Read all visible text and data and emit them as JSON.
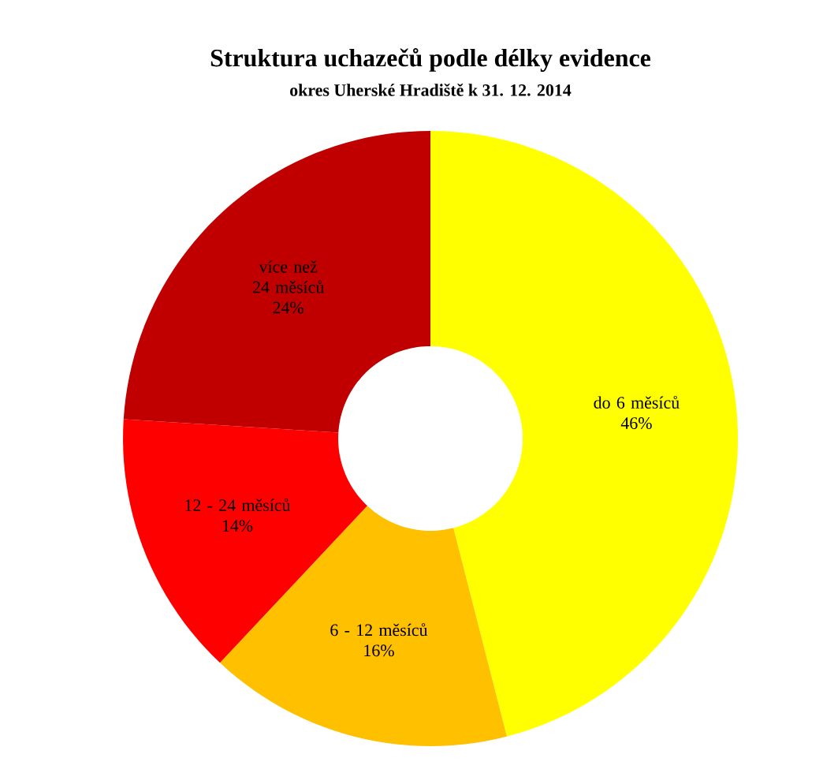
{
  "chart_data": {
    "type": "donut",
    "title": "Struktura uchazečů podle délky evidence",
    "subtitle": "okres Uherské Hradiště k 31. 12. 2014",
    "categories": [
      "do 6 měsíců",
      "6 - 12 měsíců",
      "12 - 24 měsíců",
      "více než 24 měsíců"
    ],
    "values": [
      46,
      16,
      14,
      24
    ],
    "value_labels": [
      "46%",
      "16%",
      "14%",
      "24%"
    ],
    "colors": [
      "#ffff00",
      "#ffc000",
      "#ff0000",
      "#c00000"
    ]
  }
}
